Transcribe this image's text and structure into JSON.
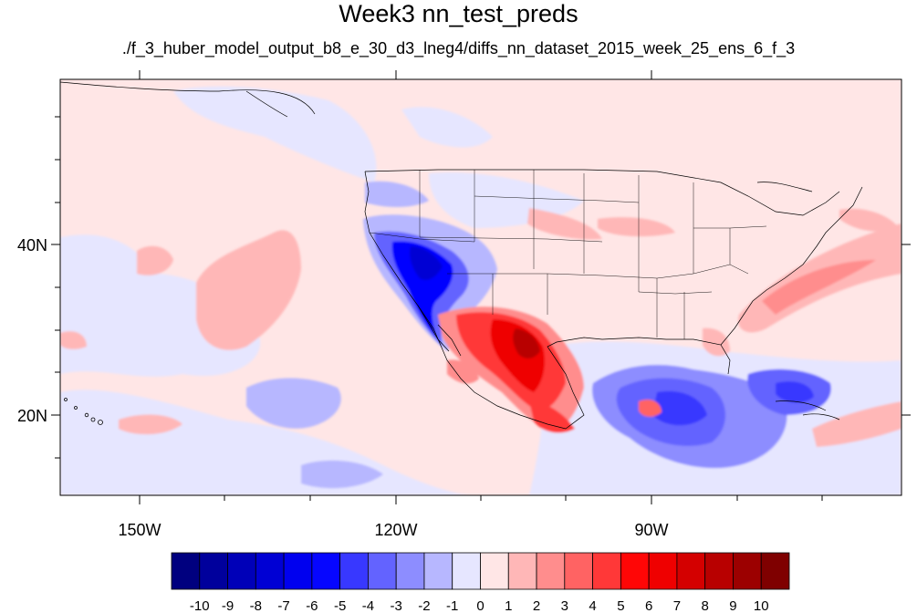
{
  "title": "Week3 nn_test_preds",
  "subtitle": "./f_3_huber_model_output_b8_e_30_d3_lneg4/diffs_nn_dataset_2015_week_25_ens_6_f_3",
  "lat_labels": [
    "40N",
    "20N"
  ],
  "lon_labels": [
    "150W",
    "120W",
    "90W"
  ],
  "colorbar": {
    "labels": [
      "-10",
      "-9",
      "-8",
      "-7",
      "-6",
      "-5",
      "-4",
      "-3",
      "-2",
      "-1",
      "0",
      "1",
      "2",
      "3",
      "4",
      "5",
      "6",
      "7",
      "8",
      "9",
      "10"
    ],
    "colors": [
      "#00007f",
      "#00009c",
      "#0000b8",
      "#0000d4",
      "#0000ef",
      "#0606ff",
      "#3838ff",
      "#6363ff",
      "#8d8dff",
      "#b7b7ff",
      "#e6e6ff",
      "#ffe6e6",
      "#ffb7b7",
      "#ff8d8d",
      "#ff6363",
      "#ff3838",
      "#ff0606",
      "#ef0000",
      "#d40000",
      "#b80000",
      "#9c0000",
      "#7f0000"
    ]
  }
}
